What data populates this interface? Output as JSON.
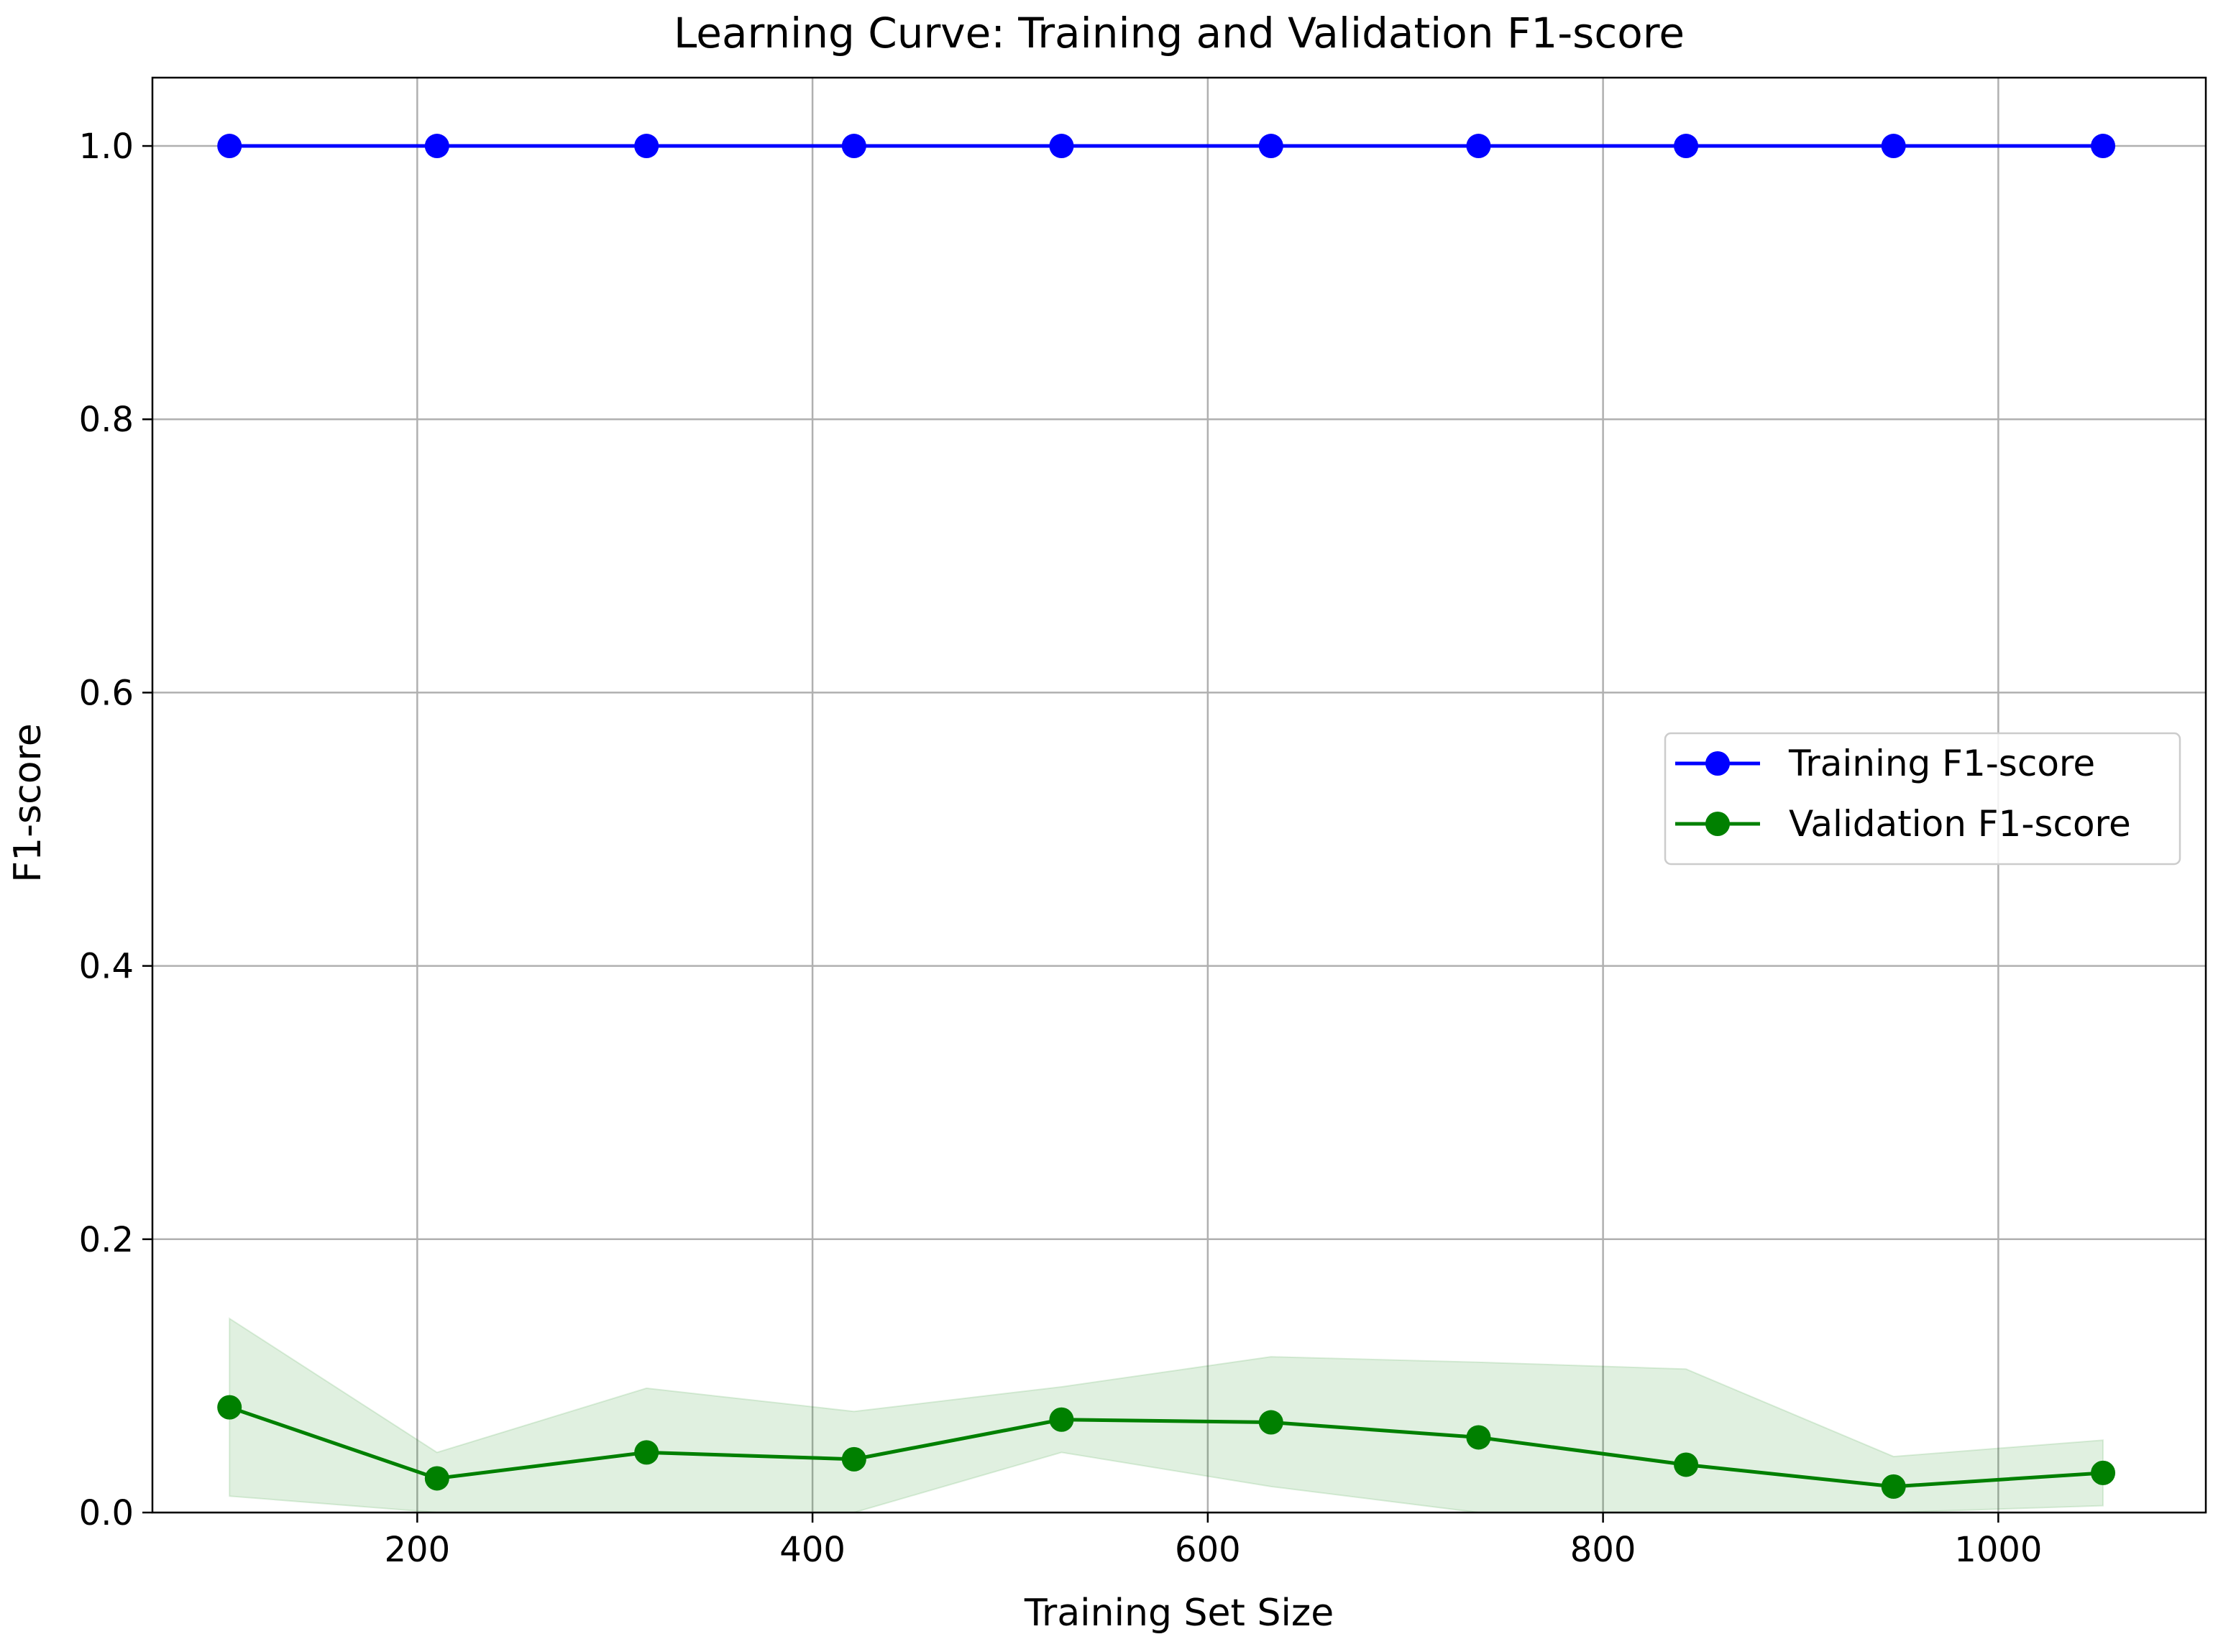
{
  "chart_data": {
    "type": "line",
    "title": "Learning Curve: Training and Validation F1-score",
    "xlabel": "Training Set Size",
    "ylabel": "F1-score",
    "xlim": [
      66,
      1105
    ],
    "ylim": [
      0.0,
      1.05
    ],
    "xticks": [
      200,
      400,
      600,
      800,
      1000
    ],
    "xtick_labels": [
      "200",
      "400",
      "600",
      "800",
      "1000"
    ],
    "yticks": [
      0.0,
      0.2,
      0.4,
      0.6,
      0.8,
      1.0
    ],
    "ytick_labels": [
      "0.0",
      "0.2",
      "0.4",
      "0.6",
      "0.8",
      "1.0"
    ],
    "grid": true,
    "legend_position": "center-right",
    "x": [
      105,
      210,
      316,
      421,
      526,
      632,
      737,
      842,
      947,
      1053
    ],
    "series": [
      {
        "name": "Training F1-score",
        "color": "#0000ff",
        "marker": "circle",
        "values": [
          1.0,
          1.0,
          1.0,
          1.0,
          1.0,
          1.0,
          1.0,
          1.0,
          1.0,
          1.0
        ]
      },
      {
        "name": "Validation F1-score",
        "color": "#008000",
        "marker": "circle",
        "values": [
          0.077,
          0.025,
          0.044,
          0.039,
          0.068,
          0.066,
          0.055,
          0.035,
          0.019,
          0.029
        ],
        "band_lower": [
          0.012,
          0.0,
          0.0,
          0.0,
          0.044,
          0.019,
          0.0,
          0.0,
          0.0,
          0.005
        ],
        "band_upper": [
          0.142,
          0.044,
          0.091,
          0.074,
          0.092,
          0.114,
          0.11,
          0.105,
          0.041,
          0.053
        ],
        "band_color": "#008000"
      }
    ]
  }
}
